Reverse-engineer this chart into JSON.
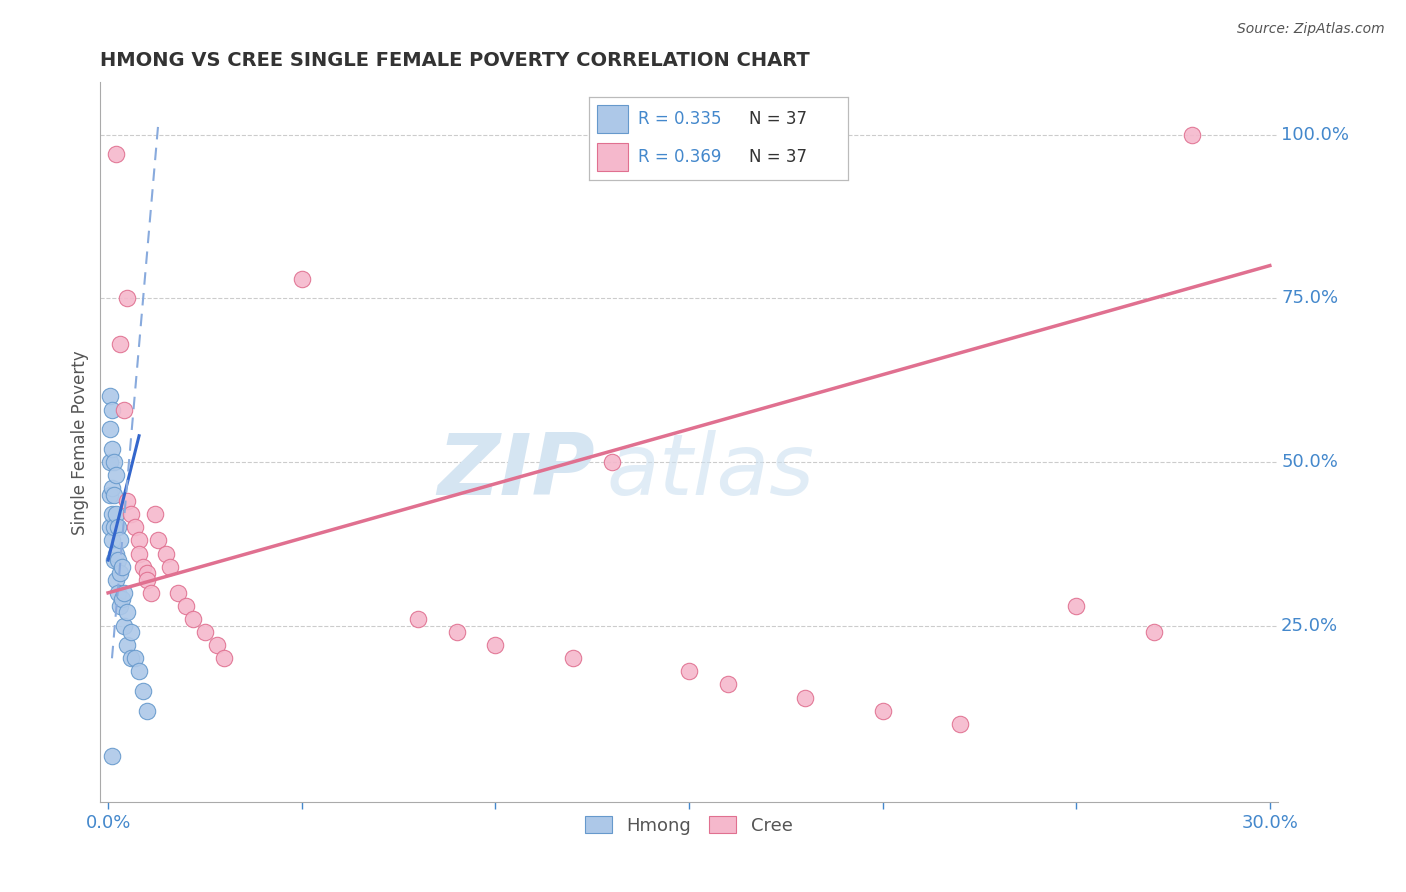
{
  "title": "HMONG VS CREE SINGLE FEMALE POVERTY CORRELATION CHART",
  "source": "Source: ZipAtlas.com",
  "ylabel": "Single Female Poverty",
  "xlim": [
    -0.002,
    0.302
  ],
  "ylim": [
    -0.02,
    1.08
  ],
  "xtick_positions": [
    0.0,
    0.05,
    0.1,
    0.15,
    0.2,
    0.25,
    0.3
  ],
  "xticklabels": [
    "0.0%",
    "",
    "",
    "",
    "",
    "",
    "30.0%"
  ],
  "ytick_positions": [
    0.25,
    0.5,
    0.75,
    1.0
  ],
  "ytick_labels": [
    "25.0%",
    "50.0%",
    "75.0%",
    "100.0%"
  ],
  "legend_hmong_r": "R = 0.335",
  "legend_hmong_n": "N = 37",
  "legend_cree_r": "R = 0.369",
  "legend_cree_n": "N = 37",
  "legend_label_hmong": "Hmong",
  "legend_label_cree": "Cree",
  "watermark_zip": "ZIP",
  "watermark_atlas": "atlas",
  "hmong_color": "#adc8e8",
  "hmong_edge_color": "#6699cc",
  "cree_color": "#f5b8cc",
  "cree_edge_color": "#e07090",
  "trend_hmong_solid_color": "#3366cc",
  "trend_hmong_dash_color": "#88aadd",
  "trend_cree_color": "#e07090",
  "grid_color": "#cccccc",
  "title_color": "#333333",
  "ylabel_color": "#555555",
  "tick_color": "#4488cc",
  "source_color": "#555555",
  "hmong_x": [
    0.0005,
    0.0005,
    0.0005,
    0.0005,
    0.0005,
    0.001,
    0.001,
    0.001,
    0.001,
    0.001,
    0.0015,
    0.0015,
    0.0015,
    0.0015,
    0.002,
    0.002,
    0.002,
    0.002,
    0.0025,
    0.0025,
    0.0025,
    0.003,
    0.003,
    0.003,
    0.0035,
    0.0035,
    0.004,
    0.004,
    0.005,
    0.005,
    0.006,
    0.006,
    0.007,
    0.008,
    0.009,
    0.01,
    0.001
  ],
  "hmong_y": [
    0.6,
    0.55,
    0.5,
    0.45,
    0.4,
    0.58,
    0.52,
    0.46,
    0.42,
    0.38,
    0.5,
    0.45,
    0.4,
    0.35,
    0.48,
    0.42,
    0.36,
    0.32,
    0.4,
    0.35,
    0.3,
    0.38,
    0.33,
    0.28,
    0.34,
    0.29,
    0.3,
    0.25,
    0.27,
    0.22,
    0.24,
    0.2,
    0.2,
    0.18,
    0.15,
    0.12,
    0.05
  ],
  "cree_x": [
    0.002,
    0.003,
    0.004,
    0.005,
    0.005,
    0.006,
    0.007,
    0.008,
    0.008,
    0.009,
    0.01,
    0.01,
    0.011,
    0.012,
    0.013,
    0.015,
    0.016,
    0.018,
    0.02,
    0.022,
    0.025,
    0.028,
    0.03,
    0.05,
    0.08,
    0.09,
    0.1,
    0.12,
    0.13,
    0.15,
    0.16,
    0.18,
    0.2,
    0.22,
    0.25,
    0.27,
    0.28
  ],
  "cree_y": [
    0.97,
    0.68,
    0.58,
    0.44,
    0.75,
    0.42,
    0.4,
    0.38,
    0.36,
    0.34,
    0.33,
    0.32,
    0.3,
    0.42,
    0.38,
    0.36,
    0.34,
    0.3,
    0.28,
    0.26,
    0.24,
    0.22,
    0.2,
    0.78,
    0.26,
    0.24,
    0.22,
    0.2,
    0.5,
    0.18,
    0.16,
    0.14,
    0.12,
    0.1,
    0.28,
    0.24,
    1.0
  ],
  "hmong_solid_trend_x": [
    0.0,
    0.008
  ],
  "hmong_solid_trend_y": [
    0.35,
    0.54
  ],
  "hmong_dash_trend_x": [
    0.001,
    0.013
  ],
  "hmong_dash_trend_y": [
    0.2,
    1.02
  ],
  "cree_trend_x": [
    0.0,
    0.3
  ],
  "cree_trend_y": [
    0.3,
    0.8
  ]
}
